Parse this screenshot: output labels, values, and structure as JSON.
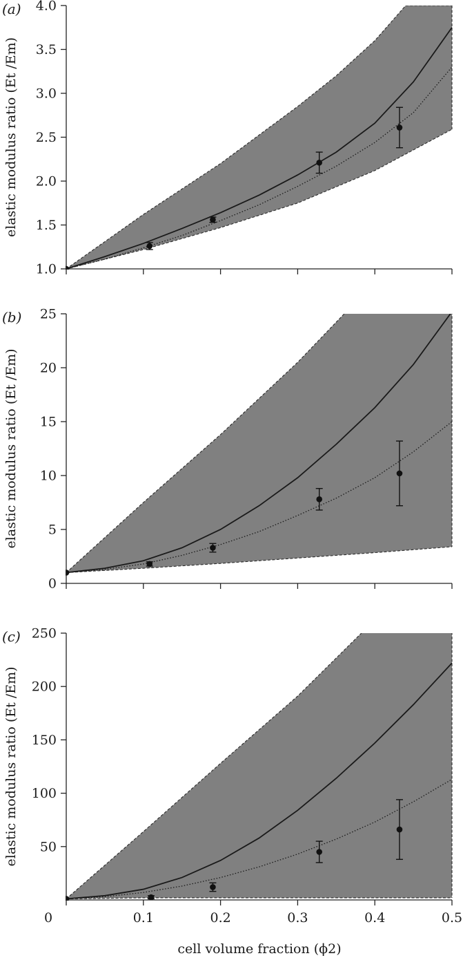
{
  "figure": {
    "xlabel": "cell volume fraction (ϕ2)",
    "ylabel": "elastic modulus ratio (Et /Em)",
    "colors": {
      "band_fill": "#808080",
      "band_edge": "#2b2b2b",
      "line": "#1a1a1a",
      "marker": "#111111",
      "axis": "#222222"
    }
  },
  "chart_data": [
    {
      "type": "line",
      "panel_label": "(a)",
      "xlim": [
        0,
        0.5
      ],
      "ylim": [
        1.0,
        4.0
      ],
      "x_ticks": [
        0,
        0.1,
        0.2,
        0.3,
        0.4,
        0.5
      ],
      "y_ticks": [
        1.0,
        1.5,
        2.0,
        2.5,
        3.0,
        3.5,
        4.0
      ],
      "y_tick_labels": [
        "1.0",
        "1.5",
        "2.0",
        "2.5",
        "3.0",
        "3.5",
        "4.0"
      ],
      "band_upper": {
        "x": [
          0,
          0.1,
          0.2,
          0.3,
          0.35,
          0.4,
          0.44,
          0.5
        ],
        "y": [
          1.0,
          1.62,
          2.2,
          2.85,
          3.2,
          3.6,
          4.0,
          4.0
        ]
      },
      "band_lower": {
        "x": [
          0,
          0.1,
          0.2,
          0.3,
          0.4,
          0.5
        ],
        "y": [
          1.0,
          1.22,
          1.47,
          1.75,
          2.12,
          2.59
        ]
      },
      "solid_line": {
        "x": [
          0,
          0.05,
          0.1,
          0.15,
          0.2,
          0.25,
          0.3,
          0.35,
          0.4,
          0.45,
          0.5
        ],
        "y": [
          1.0,
          1.14,
          1.29,
          1.46,
          1.64,
          1.84,
          2.07,
          2.33,
          2.66,
          3.13,
          3.75
        ]
      },
      "dotted_line": {
        "x": [
          0,
          0.05,
          0.1,
          0.15,
          0.2,
          0.25,
          0.3,
          0.35,
          0.4,
          0.45,
          0.5
        ],
        "y": [
          1.0,
          1.11,
          1.24,
          1.38,
          1.55,
          1.73,
          1.94,
          2.17,
          2.44,
          2.78,
          3.3
        ]
      },
      "points": [
        {
          "x": 0.0,
          "y": 1.0,
          "err": 0.0
        },
        {
          "x": 0.108,
          "y": 1.26,
          "err": 0.04
        },
        {
          "x": 0.19,
          "y": 1.56,
          "err": 0.03
        },
        {
          "x": 0.328,
          "y": 2.21,
          "err": 0.12
        },
        {
          "x": 0.432,
          "y": 2.61,
          "err": 0.23
        }
      ]
    },
    {
      "type": "line",
      "panel_label": "(b)",
      "xlim": [
        0,
        0.5
      ],
      "ylim": [
        0,
        25
      ],
      "x_ticks": [
        0,
        0.1,
        0.2,
        0.3,
        0.4,
        0.5
      ],
      "y_ticks": [
        0,
        5,
        10,
        15,
        20,
        25
      ],
      "y_tick_labels": [
        "0",
        "5",
        "10",
        "15",
        "20",
        "25"
      ],
      "band_upper": {
        "x": [
          0,
          0.1,
          0.2,
          0.3,
          0.363,
          0.5
        ],
        "y": [
          1.0,
          7.5,
          13.8,
          20.5,
          25.2,
          25.2
        ]
      },
      "band_lower": {
        "x": [
          0,
          0.1,
          0.2,
          0.3,
          0.4,
          0.5
        ],
        "y": [
          1.0,
          1.4,
          1.85,
          2.35,
          2.85,
          3.4
        ]
      },
      "solid_line": {
        "x": [
          0,
          0.05,
          0.1,
          0.15,
          0.2,
          0.25,
          0.3,
          0.35,
          0.4,
          0.45,
          0.5
        ],
        "y": [
          1.0,
          1.4,
          2.1,
          3.3,
          5.0,
          7.2,
          9.8,
          12.9,
          16.3,
          20.3,
          25.2
        ]
      },
      "dotted_line": {
        "x": [
          0,
          0.05,
          0.1,
          0.15,
          0.2,
          0.25,
          0.3,
          0.35,
          0.4,
          0.45,
          0.5
        ],
        "y": [
          1.0,
          1.3,
          1.8,
          2.6,
          3.6,
          4.8,
          6.3,
          7.9,
          9.8,
          12.2,
          15.0
        ]
      },
      "points": [
        {
          "x": 0.0,
          "y": 1.0,
          "err": 0.0
        },
        {
          "x": 0.108,
          "y": 1.8,
          "err": 0.2
        },
        {
          "x": 0.19,
          "y": 3.3,
          "err": 0.4
        },
        {
          "x": 0.328,
          "y": 7.8,
          "err": 1.0
        },
        {
          "x": 0.432,
          "y": 10.2,
          "err": 3.0
        }
      ]
    },
    {
      "type": "line",
      "panel_label": "(c)",
      "xlim": [
        0,
        0.5
      ],
      "ylim": [
        0,
        250
      ],
      "x_ticks": [
        0,
        0.1,
        0.2,
        0.3,
        0.4,
        0.5
      ],
      "x_tick_labels": [
        "0",
        "0.1",
        "0.2",
        "0.3",
        "0.4",
        "0.5"
      ],
      "y_ticks": [
        50,
        100,
        150,
        200,
        250
      ],
      "y_tick_labels": [
        "50",
        "100",
        "150",
        "200",
        "250"
      ],
      "band_upper": {
        "x": [
          0,
          0.1,
          0.2,
          0.3,
          0.384,
          0.5
        ],
        "y": [
          1.0,
          64,
          128,
          191,
          251,
          251
        ]
      },
      "band_lower": {
        "x": [
          0,
          0.1,
          0.5
        ],
        "y": [
          1.0,
          2.0,
          2.0
        ]
      },
      "solid_line": {
        "x": [
          0,
          0.05,
          0.1,
          0.15,
          0.2,
          0.25,
          0.3,
          0.35,
          0.4,
          0.45,
          0.5
        ],
        "y": [
          1.0,
          4,
          10,
          21,
          37,
          58,
          84,
          114,
          147,
          183,
          222
        ]
      },
      "dotted_line": {
        "x": [
          0,
          0.05,
          0.1,
          0.15,
          0.2,
          0.25,
          0.3,
          0.35,
          0.4,
          0.45,
          0.5
        ],
        "y": [
          1.0,
          3,
          7,
          13,
          21,
          31,
          43,
          57,
          73,
          92,
          113
        ]
      },
      "points": [
        {
          "x": 0.0,
          "y": 1.0,
          "err": 0.0
        },
        {
          "x": 0.11,
          "y": 2.5,
          "err": 1.5
        },
        {
          "x": 0.19,
          "y": 12,
          "err": 4
        },
        {
          "x": 0.328,
          "y": 45,
          "err": 10
        },
        {
          "x": 0.432,
          "y": 66,
          "err": 28
        }
      ]
    }
  ]
}
